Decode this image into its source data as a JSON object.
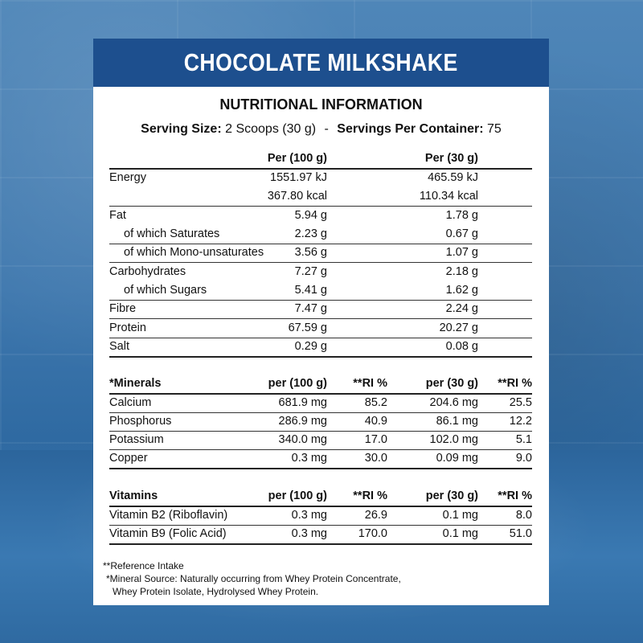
{
  "title": "CHOCOLATE MILKSHAKE",
  "heading": "NUTRITIONAL INFORMATION",
  "serving": {
    "size_label": "Serving Size:",
    "size_value": "2 Scoops (30 g)",
    "separator": "-",
    "per_container_label": "Servings Per Container:",
    "per_container_value": "75"
  },
  "nutrition": {
    "col1": "Per (100 g)",
    "col2": "Per  (30 g)",
    "rows": [
      {
        "name": "Energy",
        "v100": "1551.97 kJ",
        "v30": "465.59 kJ"
      },
      {
        "name": "",
        "v100": "367.80 kcal",
        "v30": "110.34 kcal"
      },
      {
        "name": "Fat",
        "v100": "5.94 g",
        "v30": "1.78 g"
      },
      {
        "name": "of which Saturates",
        "v100": "2.23 g",
        "v30": "0.67 g"
      },
      {
        "name": "of which Mono-unsaturates",
        "v100": "3.56 g",
        "v30": "1.07 g"
      },
      {
        "name": "Carbohydrates",
        "v100": "7.27 g",
        "v30": "2.18 g"
      },
      {
        "name": "of which Sugars",
        "v100": "5.41 g",
        "v30": "1.62 g"
      },
      {
        "name": "Fibre",
        "v100": "7.47 g",
        "v30": "2.24 g"
      },
      {
        "name": "Protein",
        "v100": "67.59 g",
        "v30": "20.27 g"
      },
      {
        "name": "Salt",
        "v100": "0.29 g",
        "v30": "0.08 g"
      }
    ]
  },
  "minerals": {
    "header": [
      "*Minerals",
      "per (100 g)",
      "**RI %",
      "per (30 g)",
      "**RI %"
    ],
    "rows": [
      {
        "name": "Calcium",
        "v100": "681.9 mg",
        "ri100": "85.2",
        "v30": "204.6 mg",
        "ri30": "25.5"
      },
      {
        "name": "Phosphorus",
        "v100": "286.9 mg",
        "ri100": "40.9",
        "v30": "86.1 mg",
        "ri30": "12.2"
      },
      {
        "name": "Potassium",
        "v100": "340.0 mg",
        "ri100": "17.0",
        "v30": "102.0 mg",
        "ri30": "5.1"
      },
      {
        "name": "Copper",
        "v100": "0.3 mg",
        "ri100": "30.0",
        "v30": "0.09 mg",
        "ri30": "9.0"
      }
    ]
  },
  "vitamins": {
    "header": [
      "Vitamins",
      "per (100 g)",
      "**RI %",
      "per (30 g)",
      "**RI %"
    ],
    "rows": [
      {
        "name": "Vitamin B2 (Riboflavin)",
        "v100": "0.3 mg",
        "ri100": "26.9",
        "v30": "0.1 mg",
        "ri30": "8.0"
      },
      {
        "name": "Vitamin B9 (Folic Acid)",
        "v100": "0.3 mg",
        "ri100": "170.0",
        "v30": "0.1 mg",
        "ri30": "51.0"
      }
    ]
  },
  "footnotes": {
    "ri": "**Reference Intake",
    "mineral_source_1": "*Mineral Source: Naturally occurring from Whey Protein Concentrate,",
    "mineral_source_2": "Whey Protein Isolate, Hydrolysed Whey Protein."
  }
}
